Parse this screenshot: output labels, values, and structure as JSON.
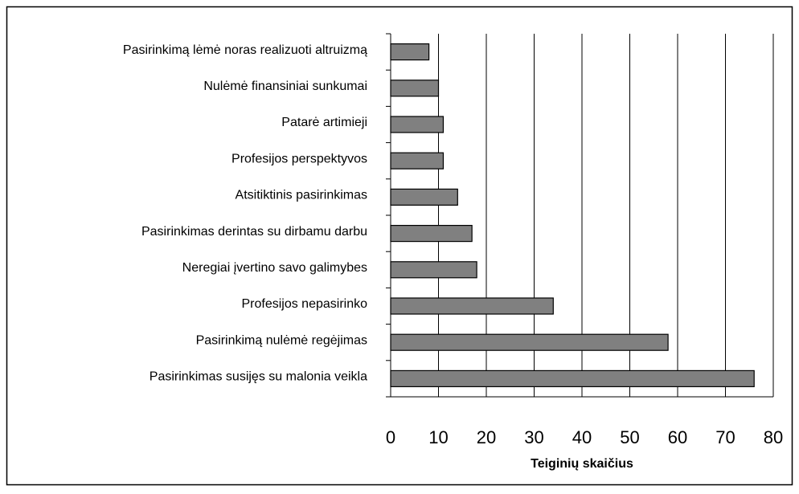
{
  "chart_data": {
    "type": "barh",
    "xlabel": "Teiginių skaičius",
    "categories": [
      "Pasirinkimą lėmė noras realizuoti altruizmą",
      "Nulėmė finansiniai sunkumai",
      "Patarė artimieji",
      "Profesijos perspektyvos",
      "Atsitiktinis pasirinkimas",
      "Pasirinkimas derintas su dirbamu darbu",
      "Neregiai įvertino savo galimybes",
      "Profesijos nepasirinko",
      "Pasirinkimą nulėmė regėjimas",
      "Pasirinkimas susijęs su malonia veikla"
    ],
    "values": [
      8,
      10,
      11,
      11,
      14,
      17,
      18,
      34,
      58,
      76
    ],
    "color": "#808080",
    "xlim": [
      0,
      80
    ],
    "xticks": [
      0,
      10,
      20,
      30,
      40,
      50,
      60,
      70,
      80
    ],
    "grid": true
  }
}
